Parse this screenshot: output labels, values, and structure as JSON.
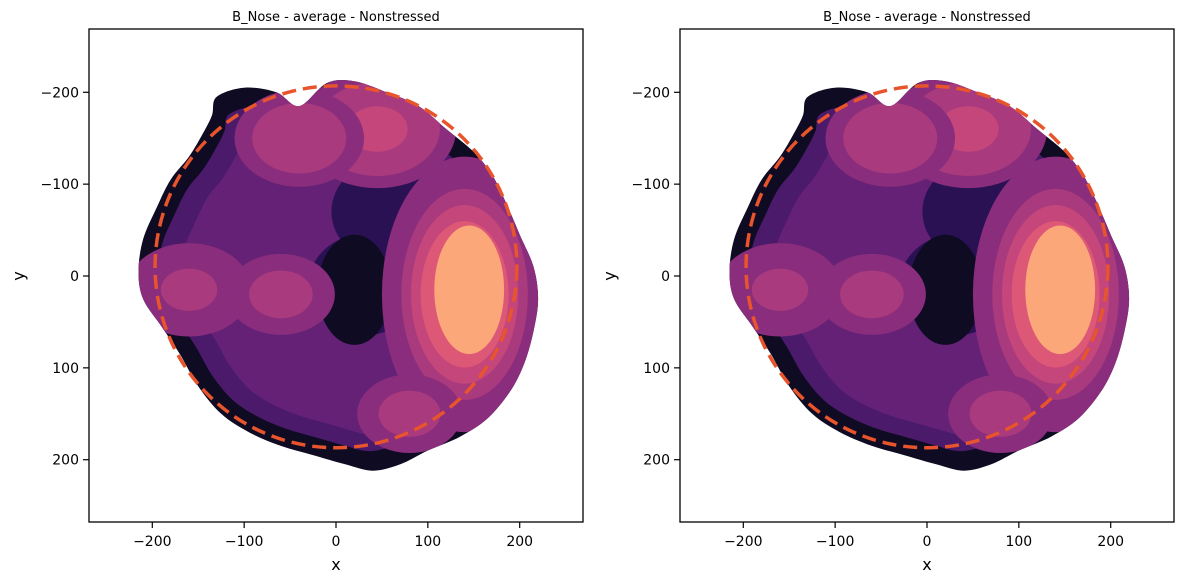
{
  "figure": {
    "panels": [
      {
        "title": "B_Nose - average - Nonstressed",
        "xlabel": "x",
        "ylabel": "y"
      },
      {
        "title": "B_Nose - average - Nonstressed",
        "xlabel": "x",
        "ylabel": "y"
      }
    ]
  },
  "chart_data": [
    {
      "type": "heatmap",
      "subtype": "kde-filled-contour",
      "title": "B_Nose - average - Nonstressed",
      "xlabel": "x",
      "ylabel": "y",
      "xlim": [
        -270,
        270
      ],
      "ylim": [
        265,
        -265
      ],
      "y_inverted": true,
      "xticks": [
        -200,
        -100,
        0,
        100,
        200
      ],
      "yticks": [
        -200,
        -100,
        0,
        100,
        200
      ],
      "xtick_labels": [
        "−200",
        "−100",
        "0",
        "100",
        "200"
      ],
      "ytick_labels": [
        "−200",
        "−100",
        "0",
        "100",
        "200"
      ],
      "grid": false,
      "colormap": "magma",
      "palette": [
        "#0e0b22",
        "#2a1154",
        "#4b1a6b",
        "#6a2378",
        "#8a2d7d",
        "#a83a7d",
        "#c4467a",
        "#dd5877",
        "#fca77a"
      ],
      "hotspots": [
        {
          "x": 140,
          "y": 20,
          "level": 1.0
        },
        {
          "x": 45,
          "y": -160,
          "level": 0.62
        },
        {
          "x": -40,
          "y": -150,
          "level": 0.45
        },
        {
          "x": -160,
          "y": 15,
          "level": 0.42
        },
        {
          "x": -60,
          "y": 20,
          "level": 0.32
        },
        {
          "x": 80,
          "y": 150,
          "level": 0.3
        }
      ],
      "cold_regions": [
        {
          "x": 30,
          "y": 10
        },
        {
          "x": 55,
          "y": -70
        }
      ],
      "circle": {
        "cx": 0,
        "cy": -10,
        "r": 197,
        "style": "dashed",
        "color": "#e8542b"
      }
    },
    {
      "type": "heatmap",
      "subtype": "kde-filled-contour",
      "title": "B_Nose - average - Nonstressed",
      "xlabel": "x",
      "ylabel": "y",
      "xlim": [
        -270,
        270
      ],
      "ylim": [
        265,
        -265
      ],
      "y_inverted": true,
      "xticks": [
        -200,
        -100,
        0,
        100,
        200
      ],
      "yticks": [
        -200,
        -100,
        0,
        100,
        200
      ],
      "xtick_labels": [
        "−200",
        "−100",
        "0",
        "100",
        "200"
      ],
      "ytick_labels": [
        "−200",
        "−100",
        "0",
        "100",
        "200"
      ],
      "grid": false,
      "colormap": "magma",
      "palette": [
        "#0e0b22",
        "#2a1154",
        "#4b1a6b",
        "#6a2378",
        "#8a2d7d",
        "#a83a7d",
        "#c4467a",
        "#dd5877",
        "#fca77a"
      ],
      "hotspots": [
        {
          "x": 140,
          "y": 20,
          "level": 1.0
        },
        {
          "x": 45,
          "y": -160,
          "level": 0.62
        },
        {
          "x": -40,
          "y": -150,
          "level": 0.45
        },
        {
          "x": -160,
          "y": 15,
          "level": 0.42
        },
        {
          "x": -60,
          "y": 20,
          "level": 0.32
        },
        {
          "x": 80,
          "y": 150,
          "level": 0.3
        }
      ],
      "cold_regions": [
        {
          "x": 30,
          "y": 10
        },
        {
          "x": 55,
          "y": -70
        }
      ],
      "circle": {
        "cx": 0,
        "cy": -10,
        "r": 197,
        "style": "dashed",
        "color": "#e8542b"
      }
    }
  ]
}
